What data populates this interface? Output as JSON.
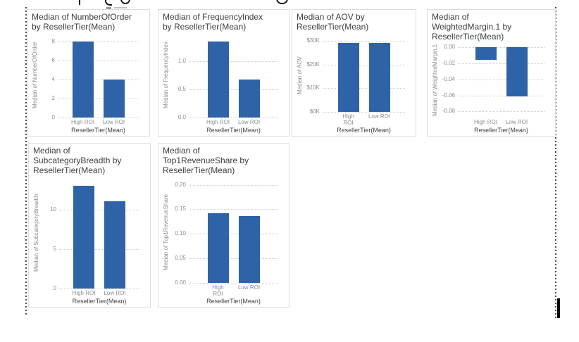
{
  "colors": {
    "bar": "#2e63a8",
    "gridline": "#cdcdcd",
    "tick_text": "#8c8c8c",
    "title_text": "#3d3d3d",
    "card_border": "#dcdcdc"
  },
  "chart_data": [
    {
      "type": "bar",
      "title": "Median of NumberOfOrder by ResellerTier(Mean)",
      "title_lines": [
        "Median of NumberOfOrder",
        "by ResellerTier(Mean)"
      ],
      "categories": [
        "High ROI",
        "Low ROI"
      ],
      "category_lines": [
        [
          "High ROI"
        ],
        [
          "Low ROI"
        ]
      ],
      "values": [
        8,
        4
      ],
      "xlabel": "ResellerTier(Mean)",
      "ylabel": "Median of NumberOfOrder",
      "ylim": [
        0,
        8.45
      ],
      "tick_values": [
        0,
        2,
        4,
        6,
        8
      ],
      "tick_labels": [
        "0",
        "2",
        "4",
        "6",
        "8"
      ],
      "grid": "dotted"
    },
    {
      "type": "bar",
      "title": "Median of FrequencyIndex by ResellerTier(Mean)",
      "title_lines": [
        "Median of FrequencyIndex",
        "by ResellerTier(Mean)"
      ],
      "categories": [
        "High ROI",
        "Low ROI"
      ],
      "category_lines": [
        [
          "High ROI"
        ],
        [
          "Low ROI"
        ]
      ],
      "values": [
        1.35,
        0.67
      ],
      "xlabel": "ResellerTier(Mean)",
      "ylabel": "Median of FrequencyIndex",
      "ylim": [
        0,
        1.42
      ],
      "tick_values": [
        0.0,
        0.5,
        1.0
      ],
      "tick_labels": [
        "0.0",
        "0.5",
        "1.0"
      ],
      "grid": "dotted"
    },
    {
      "type": "bar",
      "title": "Median of AOV by ResellerTier(Mean)",
      "title_lines": [
        "Median of AOV by",
        "ResellerTier(Mean)"
      ],
      "categories": [
        "High ROI",
        "Low ROI"
      ],
      "category_lines": [
        [
          "High",
          "ROI"
        ],
        [
          "Low ROI"
        ]
      ],
      "values": [
        29,
        29
      ],
      "xlabel": "ResellerTier(Mean)",
      "ylabel": "Median of AOV",
      "ylim": [
        0,
        31.5
      ],
      "tick_values": [
        0,
        10,
        20,
        30
      ],
      "tick_labels": [
        "$0K",
        "$10K",
        "$20K",
        "$30K"
      ],
      "grid": "dotted"
    },
    {
      "type": "bar",
      "title": "Median of WeightedMargin.1 by ResellerTier(Mean)",
      "title_lines": [
        "Median of",
        "WeightedMargin.1 by",
        "ResellerTier(Mean)"
      ],
      "categories": [
        "High ROI",
        "Low ROI"
      ],
      "category_lines": [
        [
          "High ROI"
        ],
        [
          "Low ROI"
        ]
      ],
      "values": [
        -0.016,
        -0.061
      ],
      "xlabel": "ResellerTier(Mean)",
      "ylabel": "Median of WeightedMargin.1",
      "ylim": [
        -0.0875,
        0
      ],
      "tick_values": [
        0.0,
        -0.02,
        -0.04,
        -0.06,
        -0.08
      ],
      "tick_labels": [
        "0.00",
        "-0.02",
        "-0.04",
        "-0.06",
        "-0.08"
      ],
      "grid": "dotted"
    },
    {
      "type": "bar",
      "title": "Median of SubcategoryBreadth by ResellerTier(Mean)",
      "title_lines": [
        "Median of",
        "SubcategoryBreadth by",
        "ResellerTier(Mean)"
      ],
      "categories": [
        "High ROI",
        "Low ROI"
      ],
      "category_lines": [
        [
          "High ROI"
        ],
        [
          "Low ROI"
        ]
      ],
      "values": [
        13,
        11
      ],
      "xlabel": "ResellerTier(Mean)",
      "ylabel": "Median of SubcategoryBreadth",
      "ylim": [
        0,
        13.6
      ],
      "tick_values": [
        0,
        5,
        10
      ],
      "tick_labels": [
        "0",
        "5",
        "10"
      ],
      "grid": "dotted"
    },
    {
      "type": "bar",
      "title": "Median of Top1RevenueShare by ResellerTier(Mean)",
      "title_lines": [
        "Median of",
        "Top1RevenueShare by",
        "ResellerTier(Mean)"
      ],
      "categories": [
        "High ROI",
        "Low ROI"
      ],
      "category_lines": [
        [
          "High",
          "ROI"
        ],
        [
          "Low ROI"
        ]
      ],
      "values": [
        0.142,
        0.137
      ],
      "xlabel": "ResellerTier(Mean)",
      "ylabel": "Median of Top1RevenueShare",
      "ylim": [
        0,
        0.208
      ],
      "tick_values": [
        0.0,
        0.05,
        0.1,
        0.15,
        0.2
      ],
      "tick_labels": [
        "0.00",
        "0.05",
        "0.10",
        "0.15",
        "0.20"
      ],
      "grid": "dotted"
    }
  ]
}
